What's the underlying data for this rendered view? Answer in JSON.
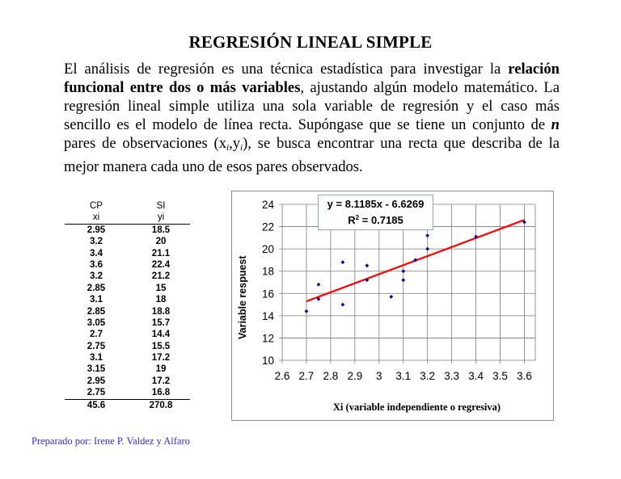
{
  "document": {
    "title": "REGRESIÓN LINEAL SIMPLE",
    "paragraph": {
      "p1": "El análisis de regresión es una técnica estadística para investigar la ",
      "bold1": "relación funcional entre dos o más variables",
      "p2": ", ajustando algún modelo matemático. La regresión lineal simple utiliza una sola variable de regresión y el caso más sencillo es el modelo de línea recta. Supóngase que se tiene un conjunto de ",
      "bold_italic_n": "n",
      "p3": " pares de observaciones (x",
      "sub_i1": "i",
      "p4": ",y",
      "sub_i2": "i",
      "p5": "), se busca encontrar una recta que describa de la mejor manera cada uno de esos pares observados."
    },
    "footer": "Preparado por: Irene P. Valdez y Alfaro",
    "footer_color": "#2e2ecc"
  },
  "table": {
    "headers": [
      [
        "CP",
        "SI"
      ],
      [
        "xi",
        "yi"
      ]
    ],
    "rows": [
      [
        "2.95",
        "18.5"
      ],
      [
        "3.2",
        "20"
      ],
      [
        "3.4",
        "21.1"
      ],
      [
        "3.6",
        "22.4"
      ],
      [
        "3.2",
        "21.2"
      ],
      [
        "2.85",
        "15"
      ],
      [
        "3.1",
        "18"
      ],
      [
        "2.85",
        "18.8"
      ],
      [
        "3.05",
        "15.7"
      ],
      [
        "2.7",
        "14.4"
      ],
      [
        "2.75",
        "15.5"
      ],
      [
        "3.1",
        "17.2"
      ],
      [
        "3.15",
        "19"
      ],
      [
        "2.95",
        "17.2"
      ],
      [
        "2.75",
        "16.8"
      ]
    ],
    "totals": [
      "45.6",
      "270.8"
    ]
  },
  "chart": {
    "equation": "y = 8.1185x - 6.6269",
    "r2_label": "R",
    "r2_sup": "2",
    "r2_value": " = 0.7185",
    "ylabel": "Variable respuest",
    "xlabel": "Xi (variable independiente o regresiva)",
    "point_color": "#00008b",
    "trend_color": "#ff0000"
  },
  "chart_data": {
    "type": "scatter",
    "title": "",
    "xlabel": "Xi (variable independiente o regresiva)",
    "ylabel": "Variable respuest",
    "xlim": [
      2.6,
      3.65
    ],
    "ylim": [
      10,
      24
    ],
    "xticks": [
      "2.6",
      "2.7",
      "2.8",
      "2.9",
      "3",
      "3.1",
      "3.2",
      "3.3",
      "3.4",
      "3.5",
      "3.6"
    ],
    "yticks": [
      "10",
      "12",
      "14",
      "16",
      "18",
      "20",
      "22",
      "24"
    ],
    "grid": true,
    "x": [
      2.95,
      3.2,
      3.4,
      3.6,
      3.2,
      2.85,
      3.1,
      2.85,
      3.05,
      2.7,
      2.75,
      3.1,
      3.15,
      2.95,
      2.75
    ],
    "y": [
      18.5,
      20,
      21.1,
      22.4,
      21.2,
      15,
      18,
      18.8,
      15.7,
      14.4,
      15.5,
      17.2,
      19,
      17.2,
      16.8
    ],
    "trendline": {
      "slope": 8.1185,
      "intercept": -6.6269,
      "x_range": [
        2.7,
        3.6
      ],
      "r_squared": 0.7185
    },
    "annotations": [
      "y = 8.1185x - 6.6269",
      "R2 = 0.7185"
    ]
  }
}
